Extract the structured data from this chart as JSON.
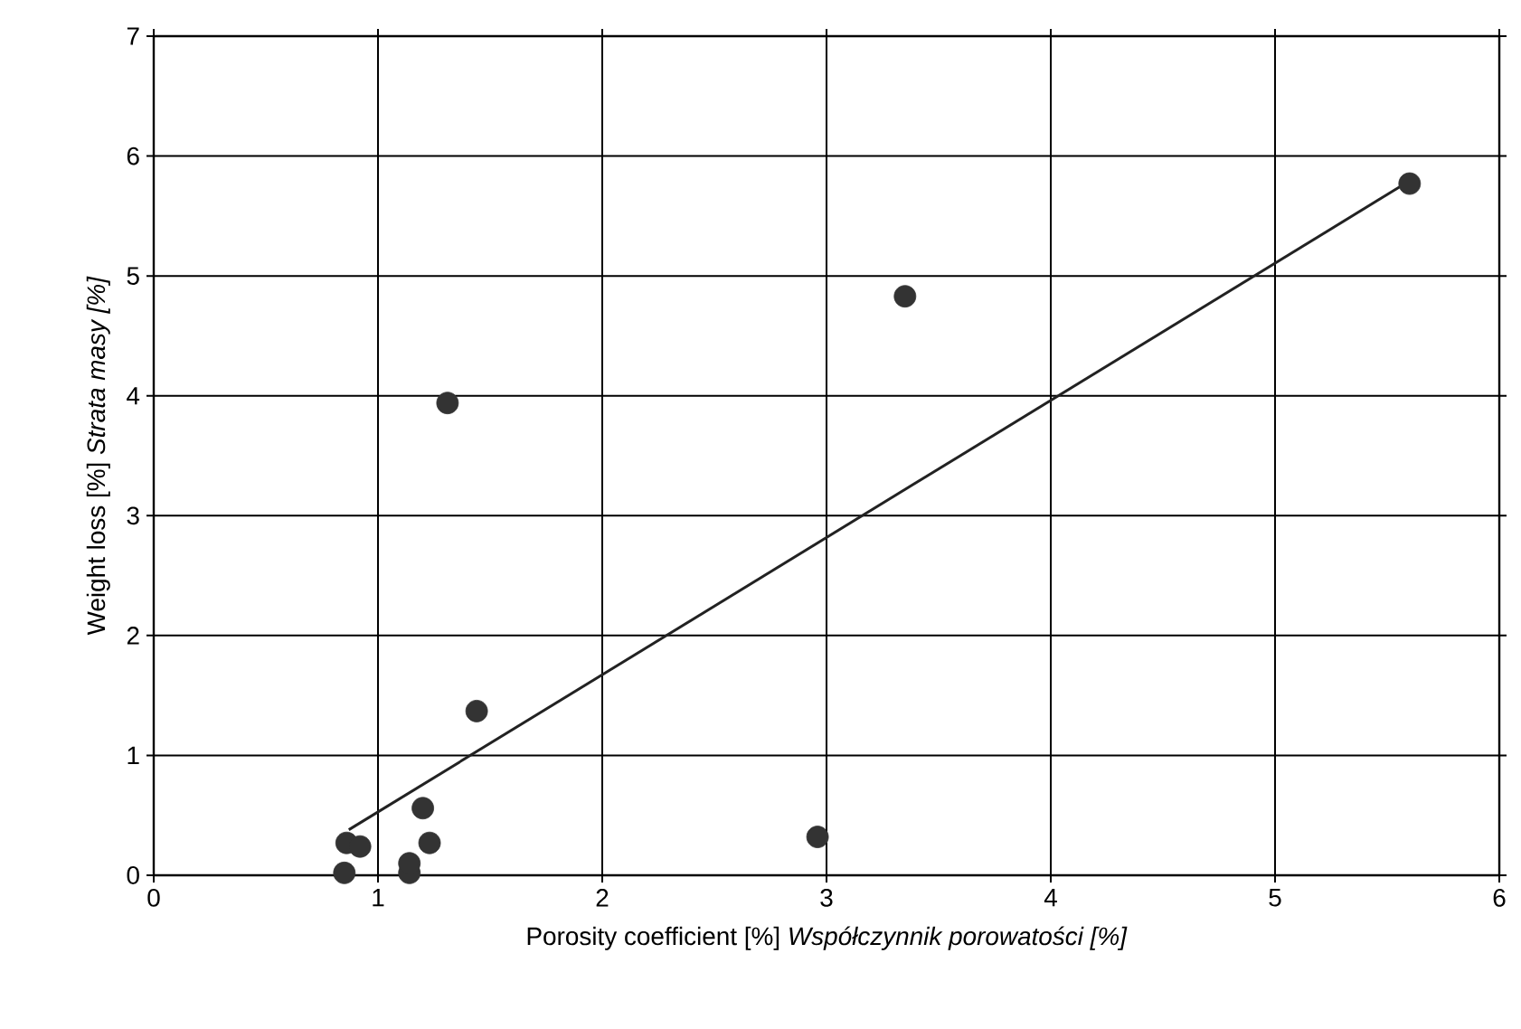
{
  "chart_data": {
    "type": "scatter",
    "xlabel": "Porosity coefficient [%]   *Współczynnik porowatości [%]*",
    "ylabel": "Weight loss [%]   *Strata masy [%]*",
    "xlim": [
      0,
      6
    ],
    "ylim": [
      0,
      7
    ],
    "xticks": [
      0,
      1,
      2,
      3,
      4,
      5,
      6
    ],
    "yticks": [
      0,
      1,
      2,
      3,
      4,
      5,
      6,
      7
    ],
    "grid": true,
    "series": [
      {
        "marker": "circle",
        "color": "#333333",
        "x": [
          0.85,
          0.86,
          0.92,
          1.14,
          1.14,
          1.23,
          1.2,
          1.44,
          1.31,
          2.96,
          3.35,
          5.6
        ],
        "values": [
          0.02,
          0.27,
          0.24,
          0.02,
          0.1,
          0.27,
          0.56,
          1.37,
          3.94,
          0.32,
          4.83,
          5.77
        ]
      },
      {
        "type": "line",
        "marker": "none",
        "color": "#222222",
        "x": [
          0.87,
          5.58
        ],
        "values": [
          0.38,
          5.77
        ]
      }
    ]
  }
}
